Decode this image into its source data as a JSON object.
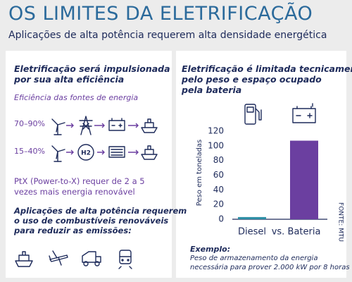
{
  "header": {
    "title": "OS LIMITES DA ELETRIFICAÇÃO",
    "subtitle": "Aplicações de alta potência requerem alta densidade energética"
  },
  "left": {
    "heading": [
      "Eletrificação será impulsionada",
      "por sua alta eficiência"
    ],
    "efficiency_title": "Eficiência das fontes de energia",
    "rows": [
      "70–90%",
      "15–40%"
    ],
    "hydrogen": "H2",
    "ptx": [
      "PtX (Power-to-X) requer de 2 a 5",
      "vezes mais energia renovável"
    ],
    "applications": [
      "Aplicações de alta potência requerem",
      "o uso de combustíveis renováveis",
      "para reduzir as emissões:"
    ]
  },
  "chart_data": {
    "type": "bar",
    "title": [
      "Eletrificação é limitada tecnicamente",
      "pelo peso e espaço ocupado",
      "pela bateria"
    ],
    "y_label": "Peso em toneladas",
    "categories": [
      "Diesel",
      "Bateria"
    ],
    "values": [
      3,
      107
    ],
    "colors": [
      "#2e8fa6",
      "#6b3fa0"
    ],
    "annotation": "vs.",
    "source": "FONTE: MTU",
    "ylim": [
      0,
      120
    ],
    "yticks": [
      0,
      20,
      40,
      60,
      80,
      100,
      120
    ],
    "grid": false,
    "note_title": "Exemplo:",
    "note": [
      "Peso de armazenamento da energia",
      "necessária para prover 2.000 kW por 8 horas"
    ]
  }
}
